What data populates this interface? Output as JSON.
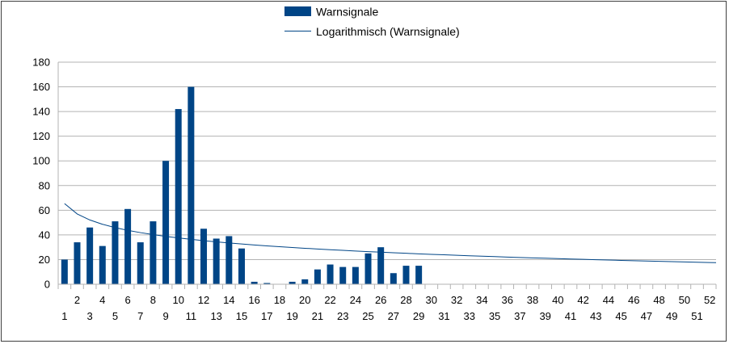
{
  "chart_data": {
    "type": "bar",
    "x": [
      1,
      2,
      3,
      4,
      5,
      6,
      7,
      8,
      9,
      10,
      11,
      12,
      13,
      14,
      15,
      16,
      17,
      18,
      19,
      20,
      21,
      22,
      23,
      24,
      25,
      26,
      27,
      28,
      29,
      30,
      31,
      32,
      33,
      34,
      35,
      36,
      37,
      38,
      39,
      40,
      41,
      42,
      43,
      44,
      45,
      46,
      47,
      48,
      49,
      50,
      51,
      52
    ],
    "series": [
      {
        "name": "Warnsignale",
        "type": "bar",
        "color": "#004586",
        "values": [
          20,
          34,
          46,
          31,
          51,
          61,
          34,
          51,
          100,
          142,
          160,
          45,
          37,
          39,
          29,
          2,
          1,
          0,
          2,
          4,
          12,
          16,
          14,
          14,
          25,
          30,
          9,
          15,
          15,
          0,
          0,
          0,
          0,
          0,
          0,
          0,
          0,
          0,
          0,
          0,
          0,
          0,
          0,
          0,
          0,
          0,
          0,
          0,
          0,
          0,
          0,
          0
        ]
      },
      {
        "name": "Logarithmisch (Warnsignale)",
        "type": "trendline-log",
        "color": "#004586",
        "coefficients": {
          "a": 65.4,
          "b": -12.1
        }
      }
    ],
    "ylim": [
      0,
      180
    ],
    "yticks": [
      0,
      20,
      40,
      60,
      80,
      100,
      120,
      140,
      160,
      180
    ],
    "xlim": [
      1,
      52
    ],
    "grid": true,
    "legend": "top-center",
    "title": "",
    "xlabel": "",
    "ylabel": ""
  }
}
